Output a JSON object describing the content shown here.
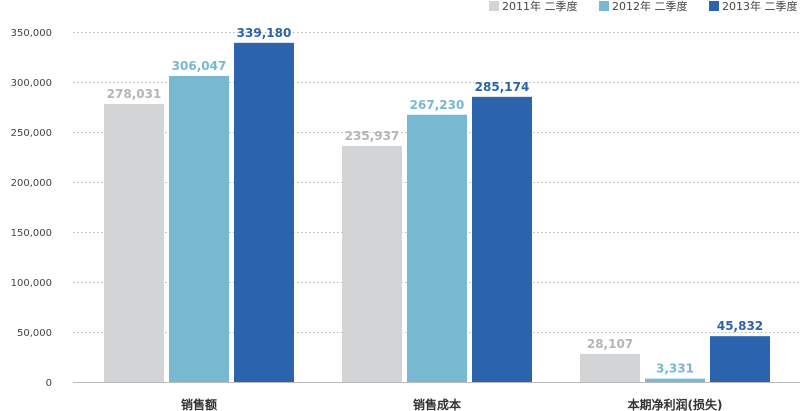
{
  "chart_data": {
    "type": "bar",
    "title": "",
    "xlabel": "",
    "ylabel": "",
    "categories": [
      "销售额",
      "销售成本",
      "本期净利润(损失)"
    ],
    "series": [
      {
        "name": "2011年 二季度",
        "color": "#d2d4d6",
        "label_color": "#b3b5b8",
        "values": [
          278031,
          235937,
          28107
        ]
      },
      {
        "name": "2012年 二季度",
        "color": "#77b9d1",
        "label_color": "#77b9d1",
        "values": [
          306047,
          267230,
          3331
        ]
      },
      {
        "name": "2013年 二季度",
        "color": "#2b63ad",
        "label_color": "#2b63ad",
        "values": [
          339180,
          285174,
          45832
        ]
      }
    ],
    "ylim": [
      0,
      350000
    ],
    "yticks": [
      0,
      50000,
      100000,
      150000,
      200000,
      250000,
      300000,
      350000
    ],
    "ytick_labels": [
      "0",
      "50,000",
      "100,000",
      "150,000",
      "200,000",
      "250,000",
      "300,000",
      "350,000"
    ],
    "data_labels": [
      [
        "278,031",
        "235,937",
        "28,107"
      ],
      [
        "306,047",
        "267,230",
        "3,331"
      ],
      [
        "339,180",
        "285,174",
        "45,832"
      ]
    ],
    "grid": true,
    "legend_position": "top-right"
  }
}
